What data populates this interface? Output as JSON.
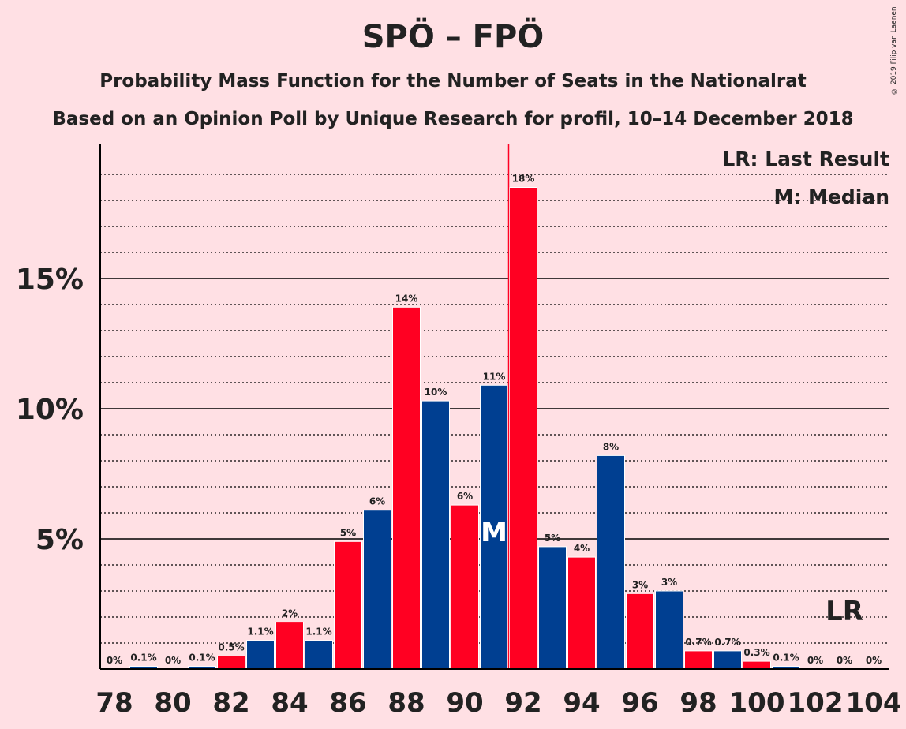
{
  "title": "SPÖ – FPÖ",
  "subtitle1": "Probability Mass Function for the Number of Seats in the Nationalrat",
  "subtitle2": "Based on an Opinion Poll by Unique Research for profil, 10–14 December 2018",
  "copyright": "© 2019 Filip van Laenen",
  "legend": {
    "lr": "LR: Last Result",
    "m": "M: Median"
  },
  "markers": {
    "median_label": "M",
    "last_result_label": "LR"
  },
  "colors": {
    "background": "#ffe0e4",
    "red": "#ff0022",
    "blue": "#003f91",
    "text": "#222222"
  },
  "chart_data": {
    "type": "bar",
    "x": [
      78,
      79,
      80,
      81,
      82,
      83,
      84,
      85,
      86,
      87,
      88,
      89,
      90,
      91,
      92,
      93,
      94,
      95,
      96,
      97,
      98,
      99,
      100,
      101,
      102,
      103,
      104
    ],
    "values": [
      0,
      0.1,
      0,
      0.1,
      0.5,
      1.1,
      1.8,
      1.1,
      4.9,
      6.1,
      13.9,
      10.3,
      6.3,
      10.9,
      18.5,
      4.7,
      4.3,
      8.2,
      2.9,
      3.0,
      0.7,
      0.7,
      0.3,
      0.1,
      0,
      0,
      0
    ],
    "data_labels": [
      "0%",
      "0.1%",
      "0%",
      "0.1%",
      "0.5%",
      "1.1%",
      "2%",
      "1.1%",
      "5%",
      "6%",
      "14%",
      "10%",
      "6%",
      "11%",
      "18%",
      "5%",
      "4%",
      "8%",
      "3%",
      "3%",
      "0.7%",
      "0.7%",
      "0.3%",
      "0.1%",
      "0%",
      "0%",
      "0%"
    ],
    "bar_colors": [
      "red",
      "blue",
      "red",
      "blue",
      "red",
      "blue",
      "red",
      "blue",
      "red",
      "blue",
      "red",
      "blue",
      "red",
      "blue",
      "red",
      "blue",
      "red",
      "blue",
      "red",
      "blue",
      "red",
      "blue",
      "red",
      "blue",
      "red",
      "blue",
      "red"
    ],
    "x_ticks": [
      "78",
      "80",
      "82",
      "84",
      "86",
      "88",
      "90",
      "92",
      "94",
      "96",
      "98",
      "100",
      "102",
      "104"
    ],
    "y_ticks": [
      "5%",
      "10%",
      "15%"
    ],
    "ylim": [
      0,
      20
    ],
    "median": 91,
    "last_result": 103,
    "grid": "dotted every 1%, solid at 5%, 10%, 15%",
    "legend_position": "top-right"
  }
}
